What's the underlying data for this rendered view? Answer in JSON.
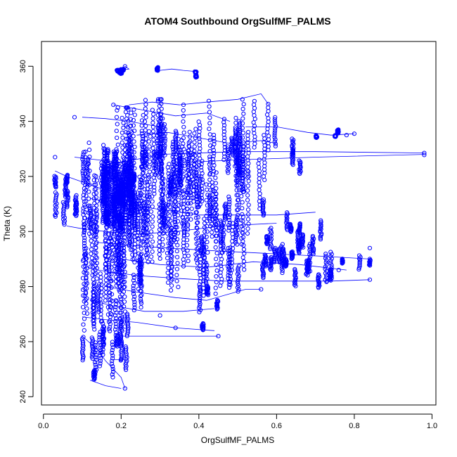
{
  "chart_data": {
    "type": "scatter",
    "title": "ATOM4 Southbound OrgSulfMF_PALMS",
    "xlabel": "OrgSulfMF_PALMS",
    "ylabel": "Theta (K)",
    "xlim": [
      -0.005,
      1.01
    ],
    "ylim": [
      237,
      369
    ],
    "xticks": [
      "0.0",
      "0.2",
      "0.4",
      "0.6",
      "0.8",
      "1.0"
    ],
    "yticks": [
      "240",
      "260",
      "280",
      "300",
      "320",
      "340",
      "360"
    ],
    "grid": false,
    "legend": "none",
    "series_color": "#0000ff",
    "segments": [
      [
        [
          0.2,
          358.5
        ],
        [
          0.21,
          360
        ],
        [
          0.22,
          359
        ],
        [
          0.2,
          358.5
        ]
      ],
      [
        [
          0.3,
          358.5
        ],
        [
          0.33,
          359
        ],
        [
          0.36,
          358.5
        ],
        [
          0.4,
          358
        ]
      ],
      [
        [
          0.22,
          346
        ],
        [
          0.28,
          347
        ],
        [
          0.35,
          346
        ],
        [
          0.42,
          347
        ],
        [
          0.5,
          348
        ],
        [
          0.56,
          350
        ],
        [
          0.58,
          346
        ]
      ],
      [
        [
          0.18,
          346
        ],
        [
          0.26,
          344
        ],
        [
          0.34,
          342
        ],
        [
          0.42,
          343
        ],
        [
          0.48,
          340
        ]
      ],
      [
        [
          0.1,
          341.5
        ],
        [
          0.16,
          341
        ],
        [
          0.22,
          340
        ],
        [
          0.3,
          338
        ]
      ],
      [
        [
          0.24,
          335
        ],
        [
          0.32,
          336
        ],
        [
          0.4,
          334
        ],
        [
          0.48,
          332
        ],
        [
          0.56,
          333
        ],
        [
          0.6,
          332
        ]
      ],
      [
        [
          0.52,
          338
        ],
        [
          0.6,
          338
        ],
        [
          0.68,
          336
        ],
        [
          0.74,
          335
        ],
        [
          0.8,
          335.5
        ]
      ],
      [
        [
          0.08,
          327
        ],
        [
          0.14,
          326
        ],
        [
          0.2,
          325
        ],
        [
          0.3,
          328
        ],
        [
          0.5,
          329
        ],
        [
          0.7,
          329
        ],
        [
          0.98,
          328.5
        ]
      ],
      [
        [
          0.35,
          325
        ],
        [
          0.5,
          326
        ],
        [
          0.7,
          327
        ],
        [
          0.98,
          328
        ]
      ],
      [
        [
          0.03,
          322
        ],
        [
          0.06,
          320
        ],
        [
          0.1,
          318
        ],
        [
          0.14,
          316
        ],
        [
          0.2,
          314
        ]
      ],
      [
        [
          0.12,
          312
        ],
        [
          0.2,
          310
        ],
        [
          0.3,
          308
        ],
        [
          0.4,
          306
        ],
        [
          0.5,
          306
        ],
        [
          0.6,
          306
        ],
        [
          0.7,
          307
        ]
      ],
      [
        [
          0.06,
          302
        ],
        [
          0.1,
          301
        ],
        [
          0.16,
          300
        ],
        [
          0.24,
          299
        ],
        [
          0.34,
          300
        ],
        [
          0.46,
          302
        ],
        [
          0.6,
          303
        ]
      ],
      [
        [
          0.14,
          296
        ],
        [
          0.22,
          295
        ],
        [
          0.32,
          294
        ],
        [
          0.44,
          293
        ],
        [
          0.58,
          292
        ],
        [
          0.72,
          291
        ],
        [
          0.84,
          290
        ]
      ],
      [
        [
          0.2,
          290
        ],
        [
          0.3,
          288
        ],
        [
          0.42,
          287
        ],
        [
          0.54,
          289
        ],
        [
          0.66,
          288
        ],
        [
          0.78,
          286
        ]
      ],
      [
        [
          0.14,
          286
        ],
        [
          0.24,
          284
        ],
        [
          0.34,
          283
        ],
        [
          0.46,
          282
        ],
        [
          0.58,
          282
        ],
        [
          0.74,
          282
        ],
        [
          0.84,
          282.5
        ]
      ],
      [
        [
          0.16,
          280
        ],
        [
          0.24,
          278
        ],
        [
          0.34,
          276
        ],
        [
          0.42,
          275
        ],
        [
          0.52,
          279
        ],
        [
          0.56,
          279
        ]
      ],
      [
        [
          0.12,
          275
        ],
        [
          0.18,
          273
        ],
        [
          0.26,
          271
        ],
        [
          0.36,
          271
        ],
        [
          0.44,
          272
        ]
      ],
      [
        [
          0.1,
          269
        ],
        [
          0.16,
          268
        ],
        [
          0.24,
          267
        ],
        [
          0.34,
          265
        ],
        [
          0.44,
          264
        ]
      ],
      [
        [
          0.2,
          262
        ],
        [
          0.3,
          262
        ],
        [
          0.4,
          262
        ],
        [
          0.45,
          262
        ]
      ],
      [
        [
          0.1,
          262
        ],
        [
          0.14,
          257
        ],
        [
          0.16,
          253
        ],
        [
          0.18,
          250
        ],
        [
          0.2,
          247
        ],
        [
          0.21,
          243
        ]
      ],
      [
        [
          0.12,
          246
        ],
        [
          0.16,
          244
        ],
        [
          0.2,
          243
        ]
      ],
      [
        [
          0.18,
          253.5
        ],
        [
          0.2,
          253.5
        ],
        [
          0.21,
          253.5
        ]
      ]
    ],
    "clusters": [
      {
        "x": [
          0.1,
          0.26
        ],
        "y": [
          262,
          345
        ],
        "n": 1100
      },
      {
        "x": [
          0.15,
          0.24
        ],
        "y": [
          300,
          330
        ],
        "n": 600
      },
      {
        "x": [
          0.22,
          0.4
        ],
        "y": [
          285,
          348
        ],
        "n": 700
      },
      {
        "x": [
          0.3,
          0.52
        ],
        "y": [
          276,
          350
        ],
        "n": 650
      },
      {
        "x": [
          0.45,
          0.6
        ],
        "y": [
          295,
          350
        ],
        "n": 300
      },
      {
        "x": [
          0.55,
          0.75
        ],
        "y": [
          279,
          305
        ],
        "n": 260
      },
      {
        "x": [
          0.1,
          0.22
        ],
        "y": [
          243,
          275
        ],
        "n": 180
      },
      {
        "x": [
          0.03,
          0.1
        ],
        "y": [
          300,
          327
        ],
        "n": 110
      },
      {
        "x": [
          0.19,
          0.23
        ],
        "y": [
          357,
          361
        ],
        "n": 60
      },
      {
        "x": [
          0.28,
          0.4
        ],
        "y": [
          355,
          360
        ],
        "n": 40
      },
      {
        "x": [
          0.58,
          0.66
        ],
        "y": [
          318,
          334
        ],
        "n": 40
      },
      {
        "x": [
          0.7,
          0.8
        ],
        "y": [
          333,
          337
        ],
        "n": 40
      },
      {
        "x": [
          0.76,
          0.84
        ],
        "y": [
          282,
          295
        ],
        "n": 30
      },
      {
        "x": [
          0.4,
          0.46
        ],
        "y": [
          262,
          285
        ],
        "n": 50
      },
      {
        "x": [
          0.6,
          0.66
        ],
        "y": [
          290,
          310
        ],
        "n": 50
      },
      {
        "x": [
          0.66,
          0.76
        ],
        "y": [
          282,
          300
        ],
        "n": 60
      }
    ],
    "points": [
      [
        0.98,
        328.5
      ],
      [
        0.98,
        327.8
      ],
      [
        0.84,
        282.5
      ],
      [
        0.84,
        290
      ],
      [
        0.84,
        294
      ],
      [
        0.76,
        286
      ],
      [
        0.78,
        335
      ],
      [
        0.8,
        335.5
      ],
      [
        0.73,
        282
      ],
      [
        0.56,
        279
      ],
      [
        0.08,
        341.5
      ],
      [
        0.18,
        346
      ],
      [
        0.21,
        360
      ],
      [
        0.34,
        265
      ],
      [
        0.3,
        269.5
      ],
      [
        0.45,
        262
      ],
      [
        0.21,
        243
      ],
      [
        0.2,
        253.5
      ],
      [
        0.03,
        327
      ],
      [
        0.03,
        306
      ]
    ]
  }
}
